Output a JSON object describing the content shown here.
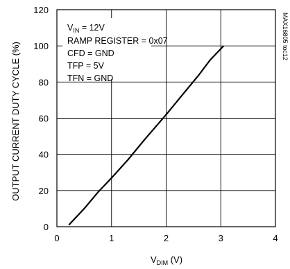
{
  "chart_data": {
    "type": "line",
    "xlabel_main": "V",
    "xlabel_sub": "DIM",
    "xlabel_unit": " (V)",
    "ylabel": "OUTPUT CURRENT DUTY CYCLE (%)",
    "xlim": [
      0,
      4
    ],
    "ylim": [
      0,
      120
    ],
    "x_ticks": [
      "0",
      "1",
      "2",
      "3",
      "4"
    ],
    "y_ticks": [
      "0",
      "20",
      "40",
      "60",
      "80",
      "100",
      "120"
    ],
    "grid": true,
    "series": [
      {
        "x": [
          0.22,
          0.5,
          0.75,
          1.0,
          1.3,
          1.6,
          2.0,
          2.3,
          2.6,
          2.8,
          3.05
        ],
        "y": [
          1,
          10,
          19,
          27,
          37,
          48,
          62,
          73,
          84,
          92,
          100
        ],
        "color": "#000000"
      }
    ],
    "annotations": {
      "vin_main": "V",
      "vin_sub": "IN",
      "vin_rest": " = 12V",
      "ramp": "RAMP REGISTER = 0x07",
      "cfd": "CFD = GND",
      "tfp": "TFP = 5V",
      "tfn": "TFN = GND"
    },
    "figure_tag": "MAX16805 toc12"
  }
}
